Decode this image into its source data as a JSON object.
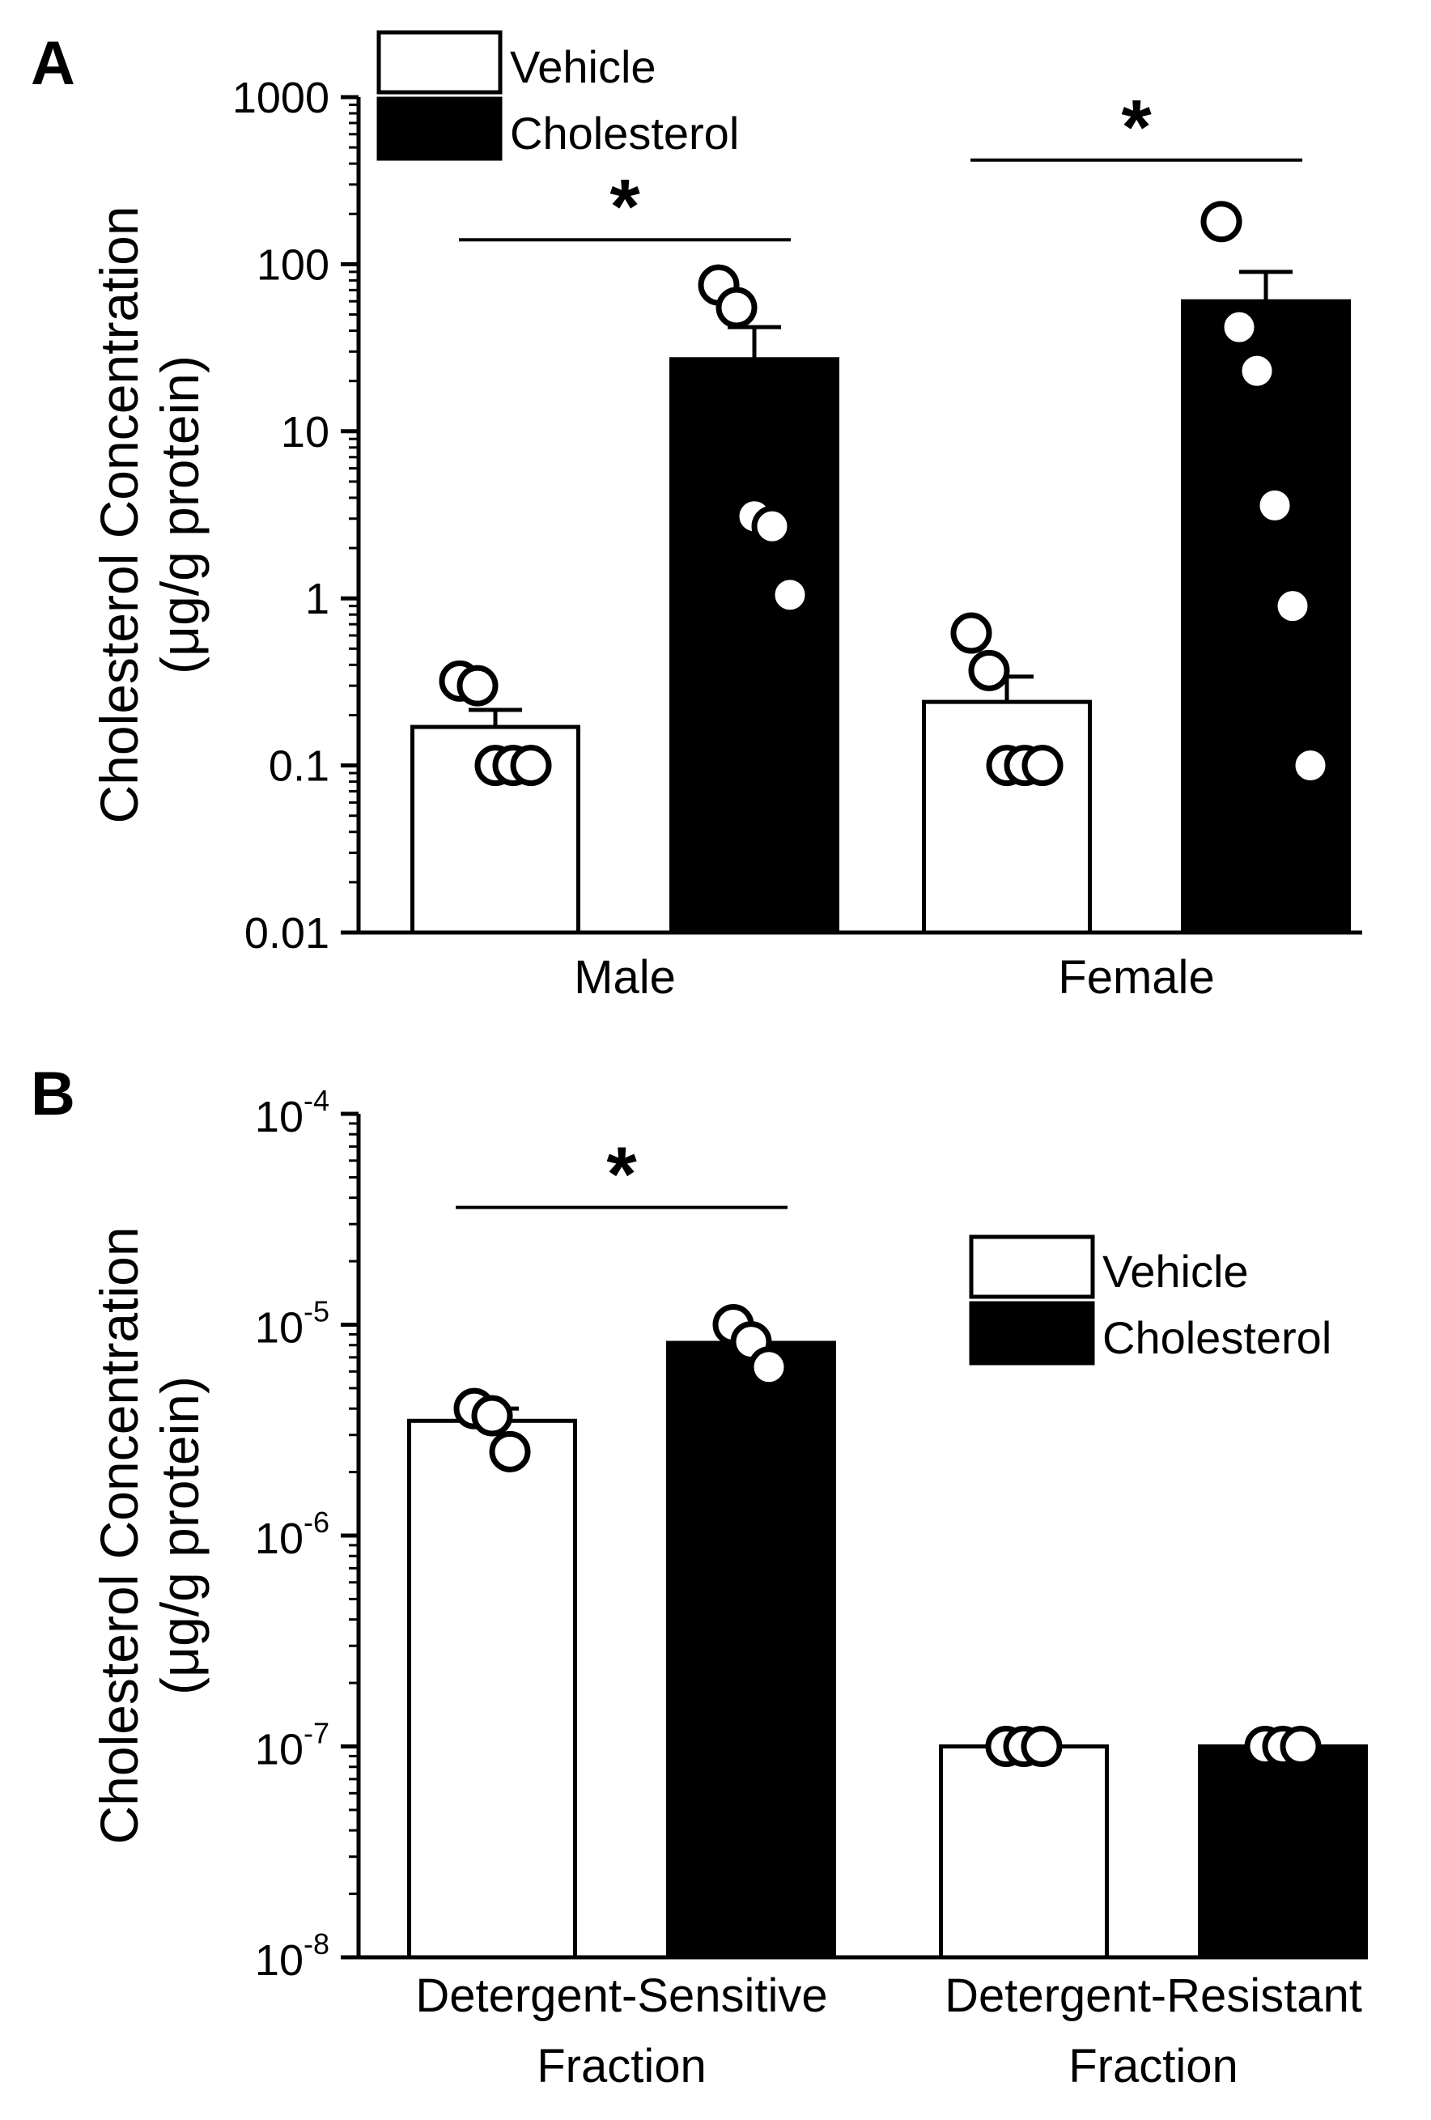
{
  "chart_data": [
    {
      "panel": "A",
      "type": "bar",
      "scale": "log",
      "ylim": [
        0.01,
        1000
      ],
      "ytick_labels": [
        "0.01",
        "0.1",
        "1",
        "10",
        "100",
        "1000"
      ],
      "ytick_values": [
        0.01,
        0.1,
        1,
        10,
        100,
        1000
      ],
      "ylabel_line1": "Cholesterol Concentration",
      "ylabel_line2": "(μg/g protein)",
      "categories": [
        "Male",
        "Female"
      ],
      "legend": {
        "position": "top-left",
        "entries": [
          "Vehicle",
          "Cholesterol"
        ]
      },
      "series": [
        {
          "name": "Vehicle",
          "color": "#ffffff",
          "values": [
            0.17,
            0.24
          ],
          "errors_upper": [
            0.215,
            0.34
          ],
          "points": [
            [
              0.32,
              0.3,
              0.1,
              0.1,
              0.1
            ],
            [
              0.62,
              0.37,
              0.1,
              0.1,
              0.1
            ]
          ]
        },
        {
          "name": "Cholesterol",
          "color": "#000000",
          "values": [
            27,
            60
          ],
          "errors_upper": [
            42,
            90
          ],
          "points": [
            [
              75,
              55,
              3.1,
              2.7,
              1.05
            ],
            [
              180,
              42,
              23,
              3.6,
              0.9,
              0.1
            ]
          ]
        }
      ],
      "significance": [
        {
          "category": "Male",
          "label": "*",
          "y": 140
        },
        {
          "category": "Female",
          "label": "*",
          "y": 420
        }
      ]
    },
    {
      "panel": "B",
      "type": "bar",
      "scale": "log",
      "ylim": [
        1e-08,
        0.0001
      ],
      "ytick_values": [
        1e-08,
        1e-07,
        1e-06,
        1e-05,
        0.0001
      ],
      "ytick_base": "10",
      "ytick_exponents": [
        "-8",
        "-7",
        "-6",
        "-5",
        "-4"
      ],
      "ylabel_line1": "Cholesterol Concentration",
      "ylabel_line2": "(μg/g protein)",
      "categories_line1": [
        "Detergent-Sensitive",
        "Detergent-Resistant"
      ],
      "categories_line2": [
        "Fraction",
        "Fraction"
      ],
      "legend": {
        "position": "top-right",
        "entries": [
          "Vehicle",
          "Cholesterol"
        ]
      },
      "series": [
        {
          "name": "Vehicle",
          "color": "#ffffff",
          "values": [
            3.5e-06,
            1e-07
          ],
          "errors_upper": [
            4e-06,
            null
          ],
          "points": [
            [
              4e-06,
              3.7e-06,
              2.5e-06
            ],
            [
              1e-07,
              1e-07,
              1e-07
            ]
          ]
        },
        {
          "name": "Cholesterol",
          "color": "#000000",
          "values": [
            8.2e-06,
            1e-07
          ],
          "errors_upper": [
            null,
            null
          ],
          "points": [
            [
              1e-05,
              8.3e-06,
              6.3e-06
            ],
            [
              1e-07,
              1e-07,
              1e-07
            ]
          ]
        }
      ],
      "significance": [
        {
          "category": "Detergent-Sensitive",
          "label": "*",
          "y": 3.6e-05
        }
      ]
    }
  ]
}
